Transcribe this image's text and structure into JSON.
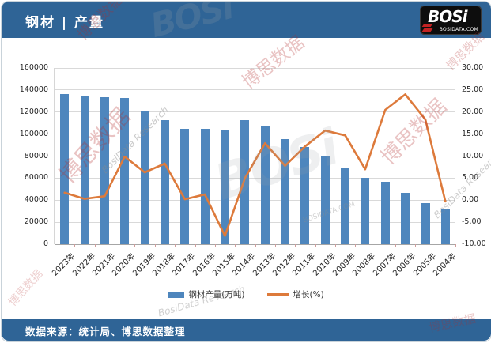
{
  "header": {
    "title": "钢材 | 产量",
    "logo_text": "BOSi",
    "logo_domain": "BOSIDATA.COM"
  },
  "footer": {
    "source": "数据来源：统计局、博思数据整理"
  },
  "watermarks": {
    "red_text": "博思数据",
    "gray_text": "BosiData Research",
    "logo_text": "BOSi",
    "domain_text": "BOSIDATA.COM"
  },
  "chart_data": {
    "type": "bar",
    "subtype": "combo-bar-line-dual-axis",
    "title": "钢材 | 产量",
    "categories": [
      "2023年",
      "2022年",
      "2021年",
      "2020年",
      "2019年",
      "2018年",
      "2017年",
      "2016年",
      "2015年",
      "2014年",
      "2013年",
      "2012年",
      "2011年",
      "2010年",
      "2009年",
      "2008年",
      "2007年",
      "2006年",
      "2005年",
      "2004年"
    ],
    "series": [
      {
        "name": "钢材产量(万吨)",
        "type": "bar",
        "axis": "left",
        "color": "#4e86bd",
        "values": [
          136000,
          134000,
          133500,
          132500,
          120500,
          113000,
          104500,
          104500,
          103000,
          112500,
          107500,
          95500,
          88500,
          80000,
          69000,
          60000,
          56500,
          46500,
          37500,
          31500
        ]
      },
      {
        "name": "增长(%)",
        "type": "line",
        "axis": "right",
        "color": "#dd7a3b",
        "values": [
          1.7,
          0.3,
          0.9,
          9.9,
          6.3,
          8.3,
          0.2,
          1.3,
          -8.1,
          5.0,
          12.9,
          7.8,
          12.2,
          15.8,
          14.7,
          7.0,
          20.5,
          24.0,
          18.3,
          -0.3
        ]
      }
    ],
    "left_axis": {
      "min": 0,
      "max": 160000,
      "step": 20000
    },
    "right_axis": {
      "min": -10,
      "max": 30,
      "step": 5,
      "decimals": 2
    },
    "grid": true,
    "legend_position": "bottom"
  }
}
